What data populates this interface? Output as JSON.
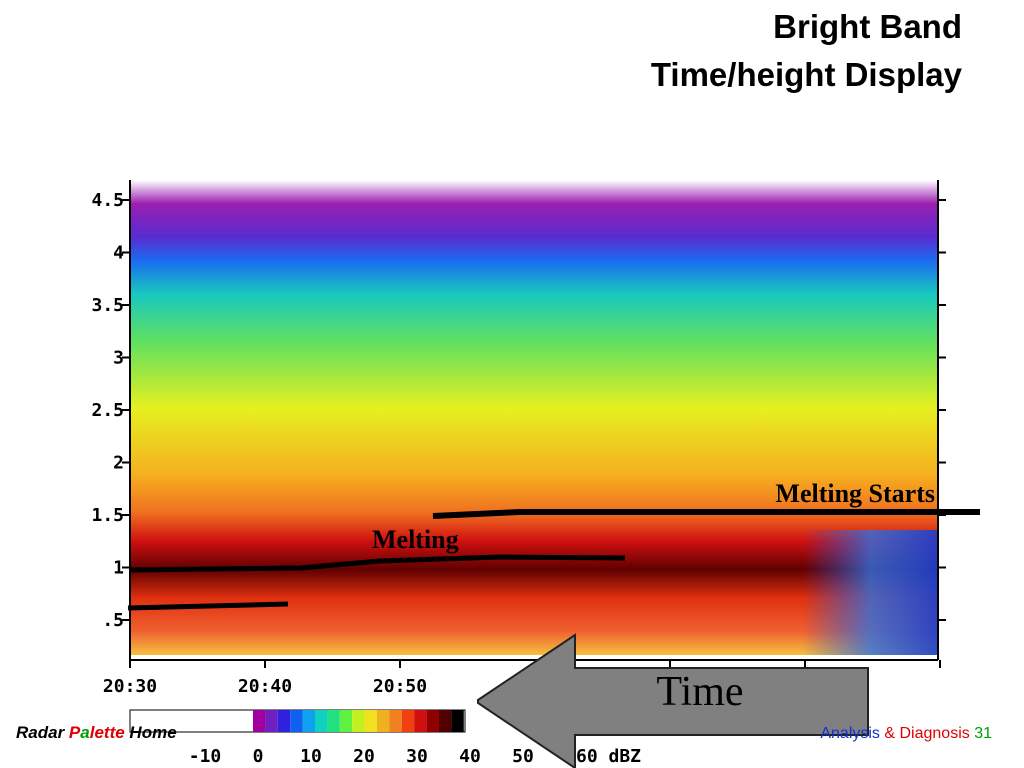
{
  "title": [
    "Bright Band",
    "Time/height Display"
  ],
  "display": {
    "y_ticks": [
      "4.5",
      "4",
      "3.5",
      "3",
      "2.5",
      "2",
      "1.5",
      "1",
      ".5"
    ],
    "x_ticks": [
      "20:30",
      "20:40",
      "20:50"
    ],
    "annotations": {
      "melting_starts": "Melting Starts",
      "melting": "Melting",
      "time": "Time"
    }
  },
  "colorbar": {
    "labels": [
      "-10",
      "0",
      "10",
      "20",
      "30",
      "40",
      "50",
      "60 dBZ"
    ]
  },
  "footer": {
    "left": [
      "Radar ",
      "P",
      "a",
      "lette",
      " Home"
    ],
    "right": [
      "Analysis ",
      "&",
      " Diagnosis ",
      "31"
    ]
  }
}
